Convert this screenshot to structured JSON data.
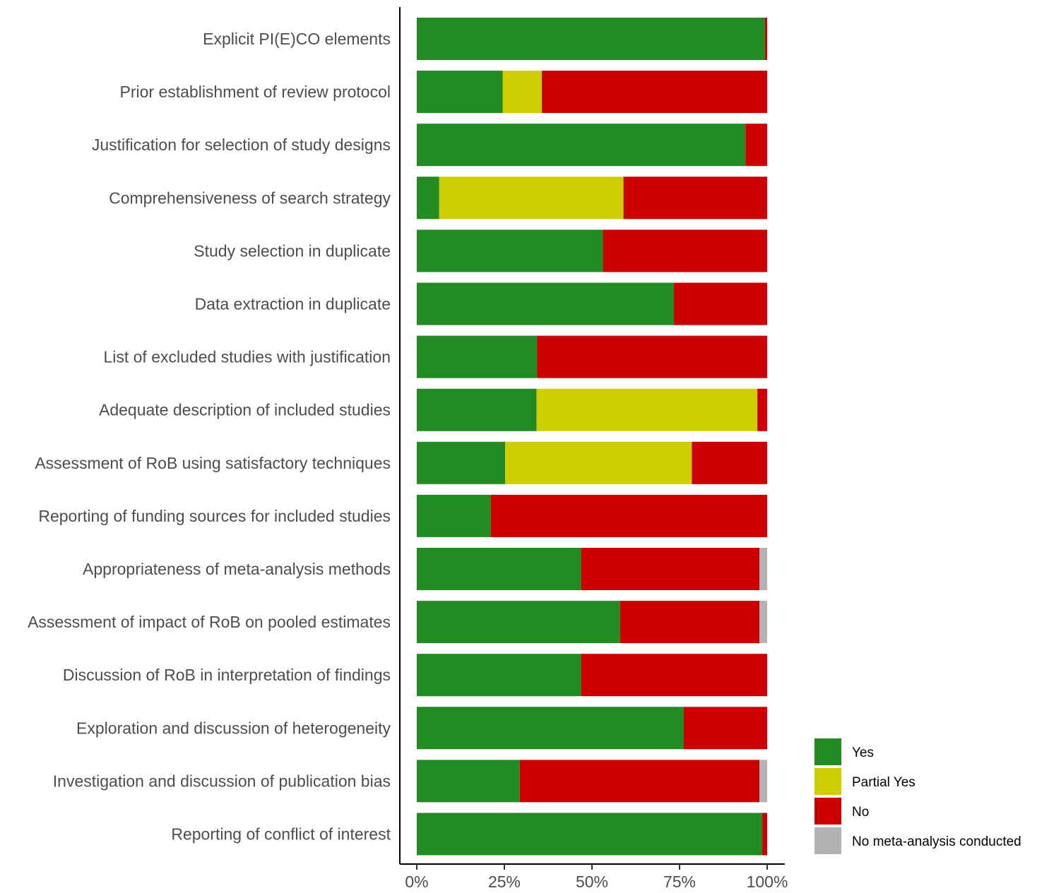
{
  "chart_data": {
    "type": "bar",
    "orientation": "horizontal",
    "stacked": true,
    "categories": [
      "Explicit PI(E)CO elements",
      "Prior establishment of review protocol",
      "Justification for selection of study designs",
      "Comprehensiveness of search strategy",
      "Study selection in duplicate",
      "Data extraction in duplicate",
      "List of excluded studies with justification",
      "Adequate description of included studies",
      "Assessment of RoB using satisfactory techniques",
      "Reporting of funding sources for included studies",
      "Appropriateness of meta-analysis methods",
      "Assessment of impact of RoB on pooled estimates",
      "Discussion of RoB in interpretation of findings",
      "Exploration and discussion of heterogeneity",
      "Investigation and discussion of publication bias",
      "Reporting of conflict of interest"
    ],
    "series": [
      {
        "name": "Yes",
        "color": "#228B22",
        "values": [
          99.4,
          24.5,
          93.8,
          6.4,
          53.1,
          73.4,
          34.3,
          34.2,
          25.2,
          21.1,
          46.9,
          58.0,
          46.9,
          76.2,
          29.4,
          98.6
        ]
      },
      {
        "name": "Partial Yes",
        "color": "#CDCD00",
        "values": [
          0,
          11.2,
          0,
          52.6,
          0,
          0,
          0,
          63.0,
          53.3,
          0,
          0,
          0,
          0,
          0,
          0,
          0
        ]
      },
      {
        "name": "No",
        "color": "#CC0000",
        "values": [
          0.6,
          64.3,
          6.2,
          41.0,
          46.9,
          26.6,
          65.7,
          2.8,
          21.5,
          78.9,
          50.9,
          39.8,
          53.1,
          23.8,
          68.4,
          1.4
        ]
      },
      {
        "name": "No meta-analysis conducted",
        "color": "#B3B3B3",
        "values": [
          0,
          0,
          0,
          0,
          0,
          0,
          0,
          0,
          0,
          0,
          2.2,
          2.2,
          0,
          0,
          2.2,
          0
        ]
      }
    ],
    "x_ticks": [
      "0%",
      "25%",
      "50%",
      "75%",
      "100%"
    ],
    "x_tick_values": [
      0,
      25,
      50,
      75,
      100
    ],
    "xlim": [
      0,
      100
    ],
    "xlabel": "",
    "ylabel": "",
    "title": "",
    "grid": false,
    "legend": "bottom-right"
  }
}
